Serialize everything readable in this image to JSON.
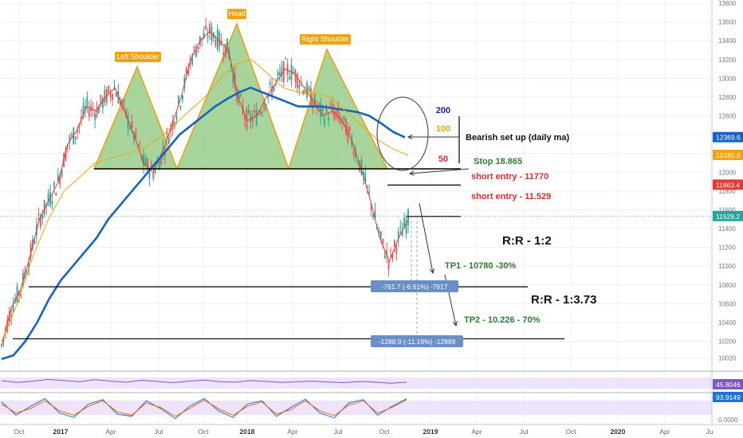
{
  "chart_data": [
    {
      "type": "line",
      "title": "",
      "y_axis": {
        "ticks": [
          13800,
          13600,
          13400,
          13200,
          13000,
          12800,
          12600,
          12400,
          12200,
          12000,
          11800,
          11600,
          11400,
          11200,
          11000,
          10800,
          10600,
          10400,
          10200,
          10020
        ],
        "ylim": [
          9950,
          13800
        ],
        "position": "right"
      },
      "x_axis": {
        "ticks": [
          "Oct",
          "2017",
          "Apr",
          "Jul",
          "Oct",
          "2018",
          "Apr",
          "Jul",
          "Oct",
          "2019",
          "Apr",
          "Jul",
          "Oct",
          "2020",
          "Apr",
          "Ju"
        ]
      },
      "series": [
        {
          "name": "",
          "color": "#e53935",
          "values": [
            10150,
            10550,
            10750,
            11100,
            11500,
            11700,
            11900,
            12300,
            12450,
            12700,
            12650,
            12800,
            12900,
            12650,
            12400,
            12100,
            12000,
            12200,
            12500,
            12800,
            13200,
            13400,
            13500,
            13400,
            13300,
            12800,
            12550,
            12600,
            12800,
            12950,
            13100,
            13050,
            12900,
            12750,
            12600,
            12650,
            12550,
            12350,
            12050,
            11700,
            11300,
            11050,
            11300,
            11500
          ]
        },
        {
          "name": "",
          "color": "#1565c0",
          "values": [
            10010,
            10050,
            10200,
            10400,
            10650,
            10850,
            11000,
            11150,
            11300,
            11500,
            11650,
            11800,
            11950,
            12100,
            12250,
            12400,
            12500,
            12600,
            12700,
            12780,
            12850,
            12900,
            12850,
            12800,
            12750,
            12700,
            12700,
            12700,
            12680,
            12660,
            12640,
            12600,
            12520,
            12430,
            12370
          ]
        },
        {
          "name": "",
          "color": "#f0a30a",
          "values": [
            10200,
            10600,
            11100,
            11500,
            11800,
            11950,
            12100,
            12150,
            12200,
            12250,
            12350,
            12500,
            12650,
            12800,
            13000,
            13150,
            13200,
            13050,
            12900,
            12850,
            12850,
            12800,
            12650,
            12500,
            12350,
            12250,
            12180
          ]
        }
      ]
    },
    {
      "type": "line",
      "title": "",
      "y_axis": {
        "ticks": [],
        "ylim": [
          0,
          100
        ]
      },
      "series": [
        {
          "name": "",
          "color": "#7e57c2",
          "values": [
            54,
            44,
            52,
            62,
            55,
            48,
            60,
            52,
            46,
            57,
            50,
            43,
            52,
            58,
            49,
            46,
            55,
            50,
            45,
            48,
            52,
            47,
            43,
            50,
            46,
            40,
            46
          ]
        }
      ],
      "readout": "45.8046"
    },
    {
      "type": "line",
      "title": "",
      "y_axis": {
        "ticks": [
          "0.0000"
        ],
        "ylim": [
          0,
          100
        ]
      },
      "series": [
        {
          "name": "",
          "color": "#1976d2",
          "values": [
            80,
            20,
            60,
            95,
            30,
            10,
            70,
            90,
            25,
            15,
            85,
            50,
            5,
            60,
            95,
            40,
            10,
            70,
            85,
            15,
            55,
            92,
            30,
            8,
            75,
            90,
            20,
            60,
            94
          ]
        },
        {
          "name": "",
          "color": "#ef6c00",
          "values": [
            70,
            30,
            50,
            85,
            40,
            20,
            60,
            85,
            35,
            20,
            75,
            55,
            15,
            50,
            88,
            50,
            20,
            60,
            80,
            25,
            45,
            85,
            40,
            18,
            65,
            85,
            30,
            55,
            90
          ]
        }
      ],
      "readout": "93.9149"
    }
  ],
  "price_labels": {
    "p200": "12369.6",
    "p100": "12180.8",
    "p50": "11863.4",
    "last": "11529.2",
    "rsi": "45.8046",
    "stoch": "93.9149"
  },
  "pattern_labels": {
    "left_shoulder": "Left Shoulder",
    "head": "Head",
    "right_shoulder": "Right Shoulder"
  },
  "annotations": {
    "ma200": "200",
    "ma100": "100",
    "ma50": "50",
    "bearish": "Bearish set up (daily ma)",
    "stop": "Stop 18.865",
    "short1": "short entry - 11770",
    "short2": "short entry - 11.529",
    "rr1": "R:R - 1:2",
    "rr2": "R:R - 1:3.73",
    "tp1": "TP1 - 10780 -30%",
    "tp2": "TP2 - 10.226 - 70%",
    "measure1": "-761.7 (-6.61%) -7617",
    "measure2": "-1288.9 (-11.19%) -12889"
  },
  "colors": {
    "grid": "#eef0f3",
    "pattern_fill": "#8bc77a",
    "pattern_stroke": "#e8a317",
    "label_bg": "#f0a30a",
    "red_text": "#d32f2f",
    "green_text": "#2e7d32",
    "blue_text": "#1a1aa8",
    "gold_text": "#e8a317",
    "measure_bg": "#6a8fc7",
    "rsi_band": "#e8d8ff"
  }
}
